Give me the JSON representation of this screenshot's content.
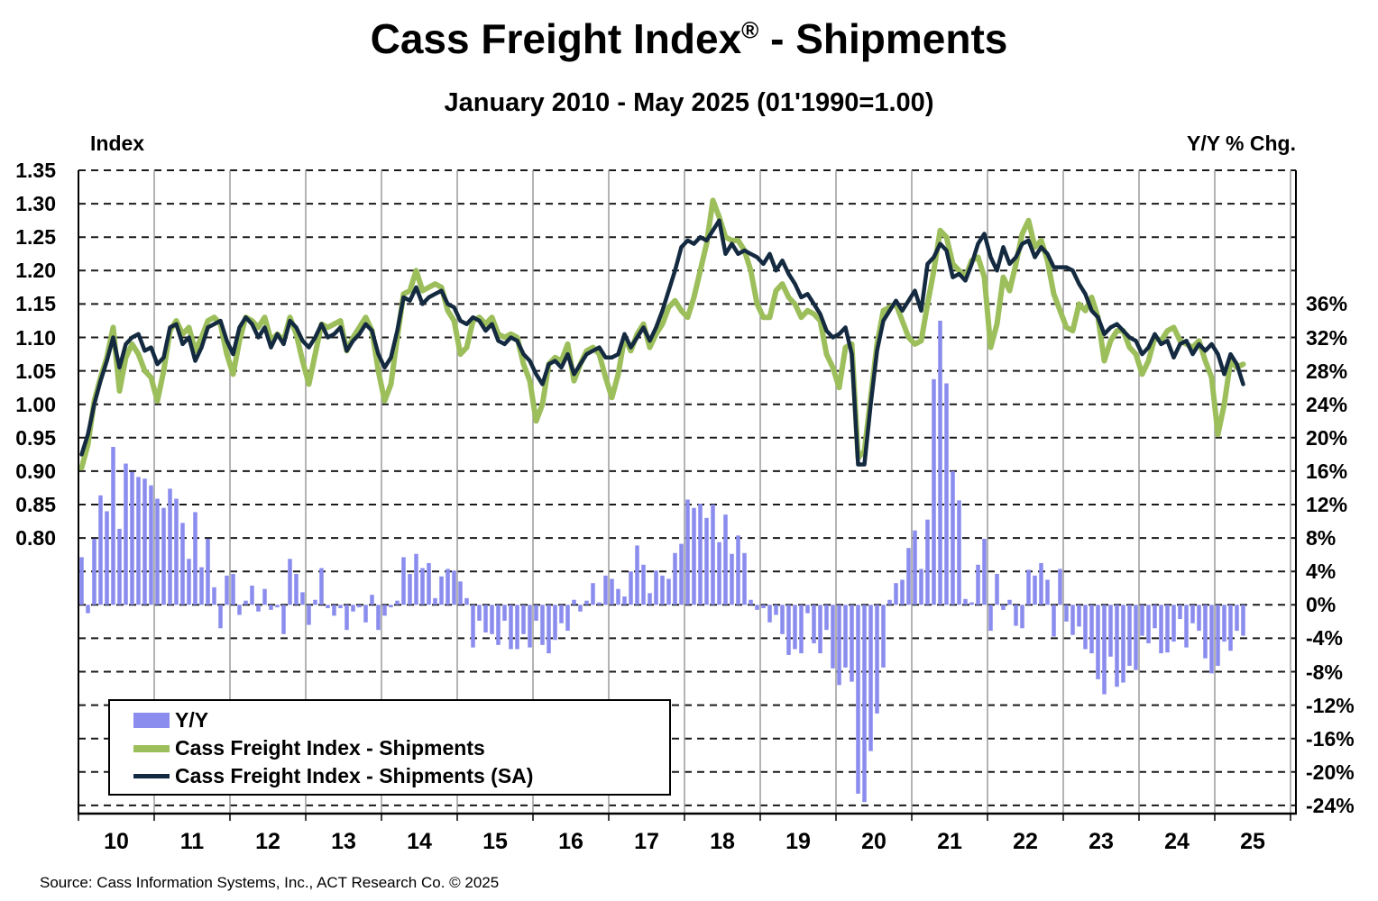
{
  "header": {
    "title_main": "Cass Freight Index",
    "title_reg": "®",
    "title_suffix": " - Shipments",
    "subtitle": "January 2010 - May 2025 (01'1990=1.00)"
  },
  "axes": {
    "left_title": "Index",
    "right_title": "Y/Y % Chg.",
    "left_ticks": [
      "1.35",
      "1.30",
      "1.25",
      "1.20",
      "1.15",
      "1.10",
      "1.05",
      "1.00",
      "0.95",
      "0.90",
      "0.85",
      "0.80"
    ],
    "right_ticks": [
      "36%",
      "32%",
      "28%",
      "24%",
      "20%",
      "16%",
      "12%",
      "8%",
      "4%",
      "0%",
      "-4%",
      "-8%",
      "-12%",
      "-16%",
      "-20%",
      "-24%"
    ],
    "x_ticks": [
      "10",
      "11",
      "12",
      "13",
      "14",
      "15",
      "16",
      "17",
      "18",
      "19",
      "20",
      "21",
      "22",
      "23",
      "24",
      "25"
    ]
  },
  "legend": {
    "items": [
      {
        "label": "Y/Y",
        "type": "bar",
        "color": "#8A8CEE"
      },
      {
        "label": "Cass Freight Index - Shipments",
        "type": "line",
        "color": "#9CBE5B"
      },
      {
        "label": "Cass Freight Index - Shipments (SA)",
        "type": "line",
        "color": "#142A40"
      }
    ]
  },
  "source": "Source: Cass Information Systems, Inc., ACT Research Co. © 2025",
  "chart_data": {
    "type": "combo",
    "title": "Cass Freight Index - Shipments",
    "subtitle": "January 2010 - May 2025 (01'1990=1.00)",
    "x_start": "2010-01",
    "x_end": "2025-05",
    "frequency": "monthly",
    "left_axis": {
      "label": "Index",
      "top": 1.35,
      "tick_step": 0.05,
      "lowest_label": 0.8
    },
    "right_axis": {
      "label": "Y/Y % Chg.",
      "max_label": 36,
      "min_label": -24,
      "tick_step": 4
    },
    "grid": {
      "horizontal": "dashed",
      "vertical": "solid-gray-yearly"
    },
    "legend_position": "bottom-left-inside",
    "series": [
      {
        "name": "Y/Y",
        "type": "bar",
        "axis": "right",
        "unit": "%",
        "color": "#8A8CEE",
        "values": [
          5.7,
          -1.0,
          7.9,
          13.1,
          11.2,
          18.9,
          9.1,
          16.9,
          15.9,
          15.3,
          15.1,
          14.3,
          12.7,
          11.6,
          13.9,
          12.7,
          9.8,
          5.5,
          11.1,
          4.5,
          7.9,
          2.1,
          -2.8,
          3.5,
          3.7,
          -1.2,
          0.5,
          2.3,
          -0.8,
          1.9,
          -0.6,
          -0.3,
          -3.5,
          5.5,
          3.7,
          1.5,
          -2.4,
          0.6,
          4.4,
          -0.4,
          -1.3,
          -0.4,
          -3.0,
          -0.8,
          -0.3,
          -2.1,
          1.2,
          -3.0,
          -1.3,
          -0.3,
          0.5,
          5.7,
          3.7,
          6.1,
          4.4,
          5.0,
          0.8,
          3.4,
          4.3,
          4.1,
          2.8,
          0.8,
          -5.1,
          -1.9,
          -3.3,
          -3.5,
          -4.8,
          -1.9,
          -5.3,
          -5.3,
          -3.5,
          -5.1,
          -1.9,
          -4.8,
          -5.8,
          -4.2,
          -2.2,
          -3.1,
          0.6,
          -0.8,
          0.5,
          2.6,
          0.3,
          3.5,
          3.1,
          1.9,
          1.0,
          4.0,
          7.1,
          4.8,
          1.4,
          4.1,
          3.5,
          3.1,
          6.2,
          7.3,
          12.6,
          11.6,
          12.1,
          10.4,
          12.0,
          7.5,
          10.8,
          6.1,
          8.3,
          6.2,
          0.6,
          -0.6,
          -0.4,
          -2.1,
          -1.2,
          -3.5,
          -6.0,
          -5.3,
          -5.8,
          -1.0,
          -4.6,
          -5.8,
          -3.0,
          -7.6,
          -9.6,
          -7.5,
          -9.2,
          -22.6,
          -23.6,
          -17.5,
          -13.0,
          -7.5,
          0.6,
          2.6,
          3.0,
          6.8,
          8.9,
          4.3,
          10.2,
          27.0,
          34.0,
          26.5,
          16.0,
          12.5,
          0.7,
          0.3,
          4.8,
          7.9,
          -3.1,
          3.7,
          -0.6,
          0.6,
          -2.5,
          -2.8,
          4.2,
          3.5,
          5.0,
          3.0,
          -3.8,
          4.3,
          -2.0,
          -3.6,
          -2.6,
          -5.3,
          -5.8,
          -8.9,
          -10.7,
          -6.2,
          -9.8,
          -9.3,
          -7.3,
          -7.8,
          -3.7,
          -4.6,
          -2.8,
          -5.8,
          -5.7,
          -4.4,
          -1.7,
          -5.1,
          -2.2,
          -3.1,
          -6.4,
          -8.2,
          -7.3,
          -4.4,
          -5.5,
          -3.1,
          -3.7
        ]
      },
      {
        "name": "Cass Freight Index - Shipments",
        "type": "line",
        "axis": "left",
        "color": "#9CBE5B",
        "values": [
          0.905,
          0.94,
          1.005,
          1.04,
          1.07,
          1.115,
          1.02,
          1.07,
          1.09,
          1.075,
          1.05,
          1.04,
          1.005,
          1.05,
          1.11,
          1.125,
          1.105,
          1.115,
          1.08,
          1.1,
          1.125,
          1.13,
          1.12,
          1.075,
          1.045,
          1.095,
          1.13,
          1.125,
          1.115,
          1.13,
          1.095,
          1.105,
          1.095,
          1.13,
          1.105,
          1.065,
          1.03,
          1.075,
          1.12,
          1.115,
          1.12,
          1.125,
          1.08,
          1.1,
          1.115,
          1.13,
          1.11,
          1.05,
          1.005,
          1.03,
          1.1,
          1.165,
          1.17,
          1.2,
          1.17,
          1.175,
          1.18,
          1.175,
          1.14,
          1.125,
          1.075,
          1.085,
          1.125,
          1.13,
          1.12,
          1.13,
          1.105,
          1.1,
          1.105,
          1.1,
          1.06,
          1.035,
          0.975,
          1.0,
          1.06,
          1.07,
          1.065,
          1.09,
          1.035,
          1.06,
          1.08,
          1.085,
          1.075,
          1.04,
          1.01,
          1.045,
          1.1,
          1.08,
          1.105,
          1.12,
          1.085,
          1.105,
          1.12,
          1.145,
          1.155,
          1.14,
          1.13,
          1.16,
          1.2,
          1.24,
          1.305,
          1.28,
          1.25,
          1.245,
          1.245,
          1.23,
          1.2,
          1.15,
          1.13,
          1.13,
          1.17,
          1.18,
          1.16,
          1.15,
          1.13,
          1.14,
          1.135,
          1.125,
          1.075,
          1.055,
          1.025,
          1.085,
          1.09,
          0.92,
          0.93,
          1.01,
          1.09,
          1.14,
          1.145,
          1.15,
          1.125,
          1.1,
          1.09,
          1.095,
          1.15,
          1.2,
          1.26,
          1.25,
          1.21,
          1.2,
          1.19,
          1.215,
          1.22,
          1.19,
          1.085,
          1.12,
          1.19,
          1.17,
          1.21,
          1.255,
          1.275,
          1.235,
          1.245,
          1.215,
          1.165,
          1.14,
          1.115,
          1.11,
          1.15,
          1.14,
          1.16,
          1.13,
          1.065,
          1.095,
          1.11,
          1.11,
          1.085,
          1.075,
          1.045,
          1.065,
          1.1,
          1.095,
          1.11,
          1.115,
          1.095,
          1.09,
          1.085,
          1.095,
          1.065,
          1.04,
          0.955,
          1.0,
          1.065,
          1.055,
          1.06
        ]
      },
      {
        "name": "Cass Freight Index - Shipments (SA)",
        "type": "line",
        "axis": "left",
        "color": "#142A40",
        "values": [
          0.925,
          0.955,
          1.0,
          1.035,
          1.065,
          1.1,
          1.055,
          1.09,
          1.1,
          1.105,
          1.08,
          1.085,
          1.06,
          1.07,
          1.115,
          1.12,
          1.09,
          1.1,
          1.065,
          1.085,
          1.115,
          1.12,
          1.125,
          1.095,
          1.075,
          1.115,
          1.13,
          1.12,
          1.1,
          1.115,
          1.085,
          1.105,
          1.09,
          1.125,
          1.115,
          1.095,
          1.085,
          1.1,
          1.12,
          1.1,
          1.105,
          1.115,
          1.08,
          1.095,
          1.105,
          1.12,
          1.11,
          1.075,
          1.055,
          1.07,
          1.11,
          1.16,
          1.155,
          1.175,
          1.15,
          1.16,
          1.165,
          1.17,
          1.15,
          1.145,
          1.125,
          1.12,
          1.13,
          1.125,
          1.11,
          1.12,
          1.095,
          1.09,
          1.1,
          1.095,
          1.075,
          1.065,
          1.045,
          1.03,
          1.06,
          1.065,
          1.055,
          1.075,
          1.045,
          1.06,
          1.075,
          1.08,
          1.085,
          1.07,
          1.07,
          1.075,
          1.105,
          1.085,
          1.1,
          1.115,
          1.095,
          1.115,
          1.14,
          1.17,
          1.2,
          1.235,
          1.245,
          1.24,
          1.25,
          1.245,
          1.26,
          1.275,
          1.225,
          1.24,
          1.225,
          1.23,
          1.225,
          1.22,
          1.21,
          1.225,
          1.2,
          1.215,
          1.195,
          1.18,
          1.16,
          1.165,
          1.15,
          1.135,
          1.11,
          1.1,
          1.105,
          1.115,
          1.075,
          0.91,
          0.91,
          1.0,
          1.08,
          1.125,
          1.14,
          1.155,
          1.14,
          1.155,
          1.17,
          1.14,
          1.21,
          1.22,
          1.24,
          1.23,
          1.19,
          1.195,
          1.185,
          1.21,
          1.24,
          1.255,
          1.22,
          1.2,
          1.235,
          1.21,
          1.22,
          1.24,
          1.245,
          1.22,
          1.235,
          1.225,
          1.205,
          1.205,
          1.205,
          1.2,
          1.18,
          1.165,
          1.14,
          1.13,
          1.105,
          1.115,
          1.12,
          1.11,
          1.1,
          1.095,
          1.075,
          1.085,
          1.105,
          1.09,
          1.095,
          1.07,
          1.09,
          1.095,
          1.075,
          1.09,
          1.08,
          1.09,
          1.075,
          1.045,
          1.075,
          1.06,
          1.03
        ]
      }
    ]
  }
}
